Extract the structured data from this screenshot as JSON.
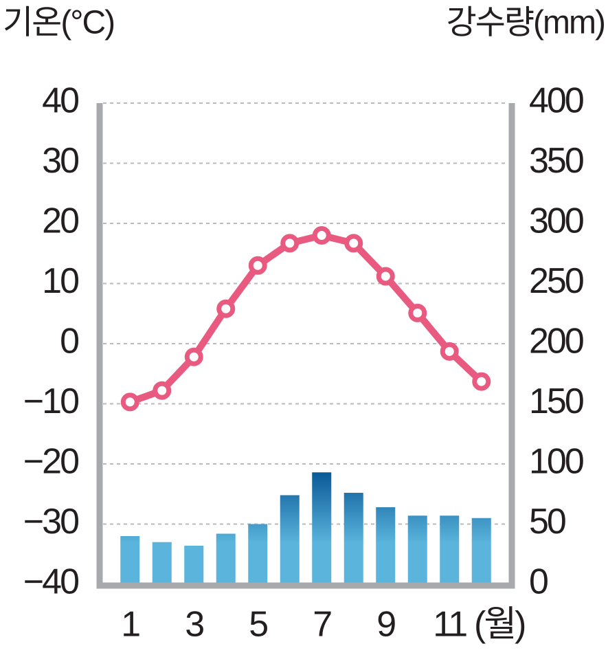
{
  "chart_data": {
    "type": "combo",
    "y_label": "기온(°C)",
    "y2_label": "강수량(mm)",
    "x_label": "(월)",
    "categories": [
      "1",
      null,
      "3",
      null,
      "5",
      null,
      "7",
      null,
      "9",
      null,
      "11",
      null
    ],
    "series": [
      {
        "type": "bar",
        "axis": "y2",
        "color": "#5ab4dc",
        "values": [
          40,
          35,
          32,
          42,
          50,
          74,
          93,
          76,
          64,
          57,
          57,
          55
        ]
      },
      {
        "type": "line",
        "axis": "y",
        "color": "#e95a80",
        "values": [
          -9.7,
          -7.8,
          -2.2,
          5.8,
          13,
          16.7,
          18,
          16.7,
          11.2,
          5.1,
          -1.3,
          -6.3
        ]
      }
    ],
    "ylim": [
      -40,
      40
    ],
    "yticks": [
      {
        "value": -40,
        "label": "−40"
      },
      {
        "value": -30,
        "label": "−30"
      },
      {
        "value": -20,
        "label": "−20"
      },
      {
        "value": -10,
        "label": "−10"
      },
      0,
      10,
      20,
      30,
      40
    ],
    "y2lim": [
      0,
      400
    ],
    "y2ticks": [
      0,
      50,
      100,
      150,
      200,
      250,
      300,
      350,
      400
    ],
    "grid": true
  }
}
